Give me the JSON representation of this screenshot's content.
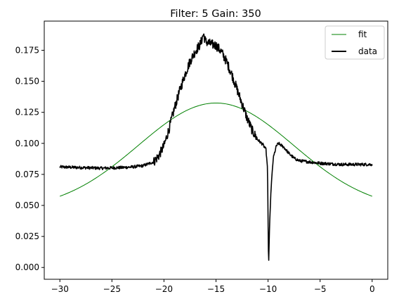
{
  "chart_data": {
    "type": "line",
    "title": "Filter: 5 Gain: 350",
    "xlabel": "",
    "ylabel": "",
    "xlim": [
      -31.5,
      1.5
    ],
    "ylim": [
      -0.0095,
      0.1985
    ],
    "x_ticks": [
      -30,
      -25,
      -20,
      -15,
      -10,
      -5,
      0
    ],
    "x_tick_labels": [
      "−30",
      "−25",
      "−20",
      "−15",
      "−10",
      "−5",
      "0"
    ],
    "y_ticks": [
      0.0,
      0.025,
      0.05,
      0.075,
      0.1,
      0.125,
      0.15,
      0.175
    ],
    "y_tick_labels": [
      "0.000",
      "0.025",
      "0.050",
      "0.075",
      "0.100",
      "0.125",
      "0.150",
      "0.175"
    ],
    "grid": false,
    "legend_position": "top-right",
    "series": [
      {
        "name": "fit",
        "color": "#008000",
        "style": "thin line",
        "gaussian": {
          "amplitude": 0.0865,
          "center": -15.0,
          "sigma": 7.45,
          "offset": 0.046
        },
        "x": [
          -30,
          -27.5,
          -25,
          -22.5,
          -20,
          -17.5,
          -15,
          -12.5,
          -10,
          -7.5,
          -5,
          -2.5,
          0
        ],
        "y": [
          0.055,
          0.07,
          0.087,
          0.105,
          0.12,
          0.13,
          0.133,
          0.13,
          0.12,
          0.105,
          0.087,
          0.07,
          0.055
        ]
      },
      {
        "name": "data",
        "color": "#000000",
        "style": "thick noisy line",
        "x": [
          -30,
          -28,
          -26,
          -24,
          -23,
          -22,
          -21,
          -20.5,
          -20,
          -19.5,
          -19,
          -18.5,
          -18,
          -17.5,
          -17,
          -16.5,
          -16.2,
          -16,
          -15.5,
          -15,
          -14.5,
          -14,
          -13.5,
          -13,
          -12.5,
          -12,
          -11.5,
          -11,
          -10.5,
          -10.2,
          -10.05,
          -9.95,
          -9.85,
          -9.7,
          -9.5,
          -9.2,
          -9,
          -8.5,
          -8,
          -7.5,
          -7,
          -6,
          -5,
          -4,
          -3,
          -2,
          -1,
          0
        ],
        "y": [
          0.081,
          0.0805,
          0.08,
          0.0805,
          0.081,
          0.082,
          0.085,
          0.09,
          0.098,
          0.112,
          0.128,
          0.142,
          0.155,
          0.166,
          0.174,
          0.18,
          0.188,
          0.182,
          0.18,
          0.179,
          0.174,
          0.166,
          0.156,
          0.144,
          0.132,
          0.12,
          0.11,
          0.103,
          0.099,
          0.095,
          0.08,
          0.0,
          0.035,
          0.065,
          0.088,
          0.098,
          0.1,
          0.097,
          0.092,
          0.088,
          0.086,
          0.085,
          0.084,
          0.0835,
          0.083,
          0.083,
          0.083,
          0.083
        ],
        "noise_amplitude": 0.0012
      }
    ]
  }
}
